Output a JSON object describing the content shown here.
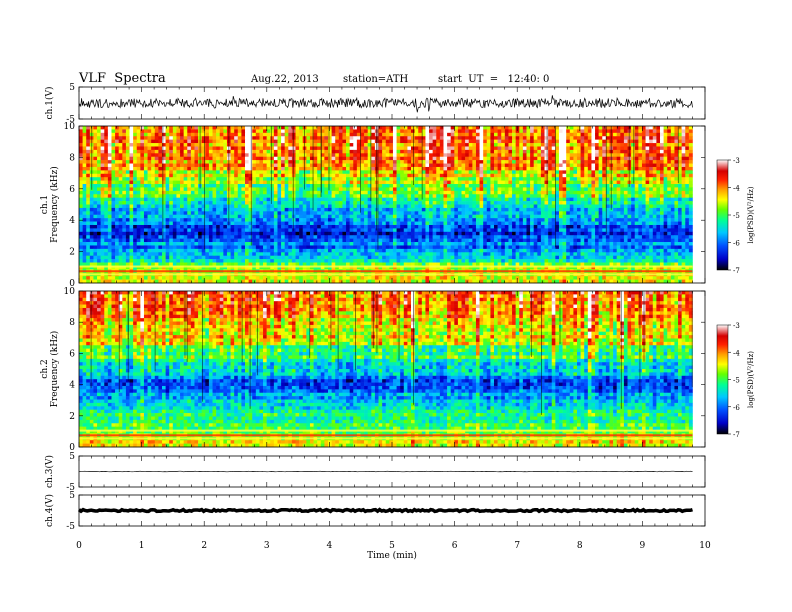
{
  "header": {
    "title": "VLF  Spectra",
    "date": "Aug.22, 2013",
    "station": "station=ATH",
    "start": "start  UT  =   12:40: 0"
  },
  "colors": {
    "waveform": "#000000",
    "spectrogram_scale": [
      "#000000",
      "#0000c8",
      "#0050ff",
      "#00c8ff",
      "#00ff96",
      "#64ff00",
      "#ffff00",
      "#ffa000",
      "#ff2000",
      "#d40000",
      "#ffffff"
    ]
  },
  "chart_data": [
    {
      "type": "line",
      "name": "ch1-waveform",
      "ylabel": "ch.1(V)",
      "ylim": [
        -5,
        5
      ],
      "y_ticks": [
        "5",
        "-5"
      ],
      "xlim": [
        0,
        10
      ],
      "x_range_data": [
        0,
        9.8
      ],
      "description_values": {
        "baseline": 0,
        "amplitude_approx": 1.5
      }
    },
    {
      "type": "heatmap",
      "name": "ch1-spectrogram",
      "ylabel": "ch.1\nFrequency (kHz)",
      "ylim": [
        0,
        10
      ],
      "y_ticks": [
        "0",
        "2",
        "4",
        "6",
        "8",
        "10"
      ],
      "xlim": [
        0,
        10
      ],
      "x_range_data": [
        0,
        9.8
      ],
      "colorbar": {
        "label": "log(PSD)(V²/Hz)",
        "range": [
          -7,
          -3
        ],
        "ticks": [
          "-3",
          "-4",
          "-5",
          "-6",
          "-7"
        ]
      },
      "profile_logpsd_by_freq_khz": [
        [
          0,
          -4.3
        ],
        [
          0.5,
          -4.4
        ],
        [
          1,
          -4.9
        ],
        [
          2,
          -5.8
        ],
        [
          3,
          -6.3
        ],
        [
          4,
          -6.0
        ],
        [
          5,
          -5.4
        ],
        [
          6,
          -4.9
        ],
        [
          7,
          -4.4
        ],
        [
          8,
          -4.0
        ],
        [
          9,
          -3.8
        ],
        [
          10,
          -3.7
        ]
      ]
    },
    {
      "type": "heatmap",
      "name": "ch2-spectrogram",
      "ylabel": "ch.2\nFrequency (kHz)",
      "ylim": [
        0,
        10
      ],
      "y_ticks": [
        "0",
        "2",
        "4",
        "6",
        "8",
        "10"
      ],
      "xlim": [
        0,
        10
      ],
      "x_range_data": [
        0,
        9.8
      ],
      "colorbar": {
        "label": "log(PSD)(V²/Hz)",
        "range": [
          -7,
          -3
        ],
        "ticks": [
          "-3",
          "-4",
          "-5",
          "-6",
          "-7"
        ]
      },
      "profile_logpsd_by_freq_khz": [
        [
          0,
          -4.6
        ],
        [
          0.5,
          -4.5
        ],
        [
          1,
          -4.7
        ],
        [
          2,
          -5.3
        ],
        [
          3,
          -5.6
        ],
        [
          4,
          -6.1
        ],
        [
          5,
          -5.6
        ],
        [
          6,
          -5.0
        ],
        [
          7,
          -4.5
        ],
        [
          8,
          -4.2
        ],
        [
          9,
          -4.0
        ],
        [
          10,
          -3.9
        ]
      ]
    },
    {
      "type": "line",
      "name": "ch3-waveform",
      "ylabel": "ch.3(V)",
      "ylim": [
        -5,
        5
      ],
      "y_ticks": [
        "5",
        "-5"
      ],
      "xlim": [
        0,
        10
      ],
      "x_range_data": [
        0,
        9.8
      ],
      "description_values": {
        "baseline": 0,
        "amplitude_approx": 0.1
      }
    },
    {
      "type": "line",
      "name": "ch4-waveform",
      "ylabel": "ch.4(V)",
      "ylim": [
        -5,
        5
      ],
      "y_ticks": [
        "5",
        "-5"
      ],
      "xlim": [
        0,
        10
      ],
      "x_range_data": [
        0,
        9.8
      ],
      "description_values": {
        "baseline": 0,
        "amplitude_approx": 0.3
      }
    }
  ],
  "x_axis": {
    "label": "Time  (min)",
    "ticks": [
      "0",
      "1",
      "2",
      "3",
      "4",
      "5",
      "6",
      "7",
      "8",
      "9",
      "10"
    ],
    "range": [
      0,
      10
    ]
  }
}
